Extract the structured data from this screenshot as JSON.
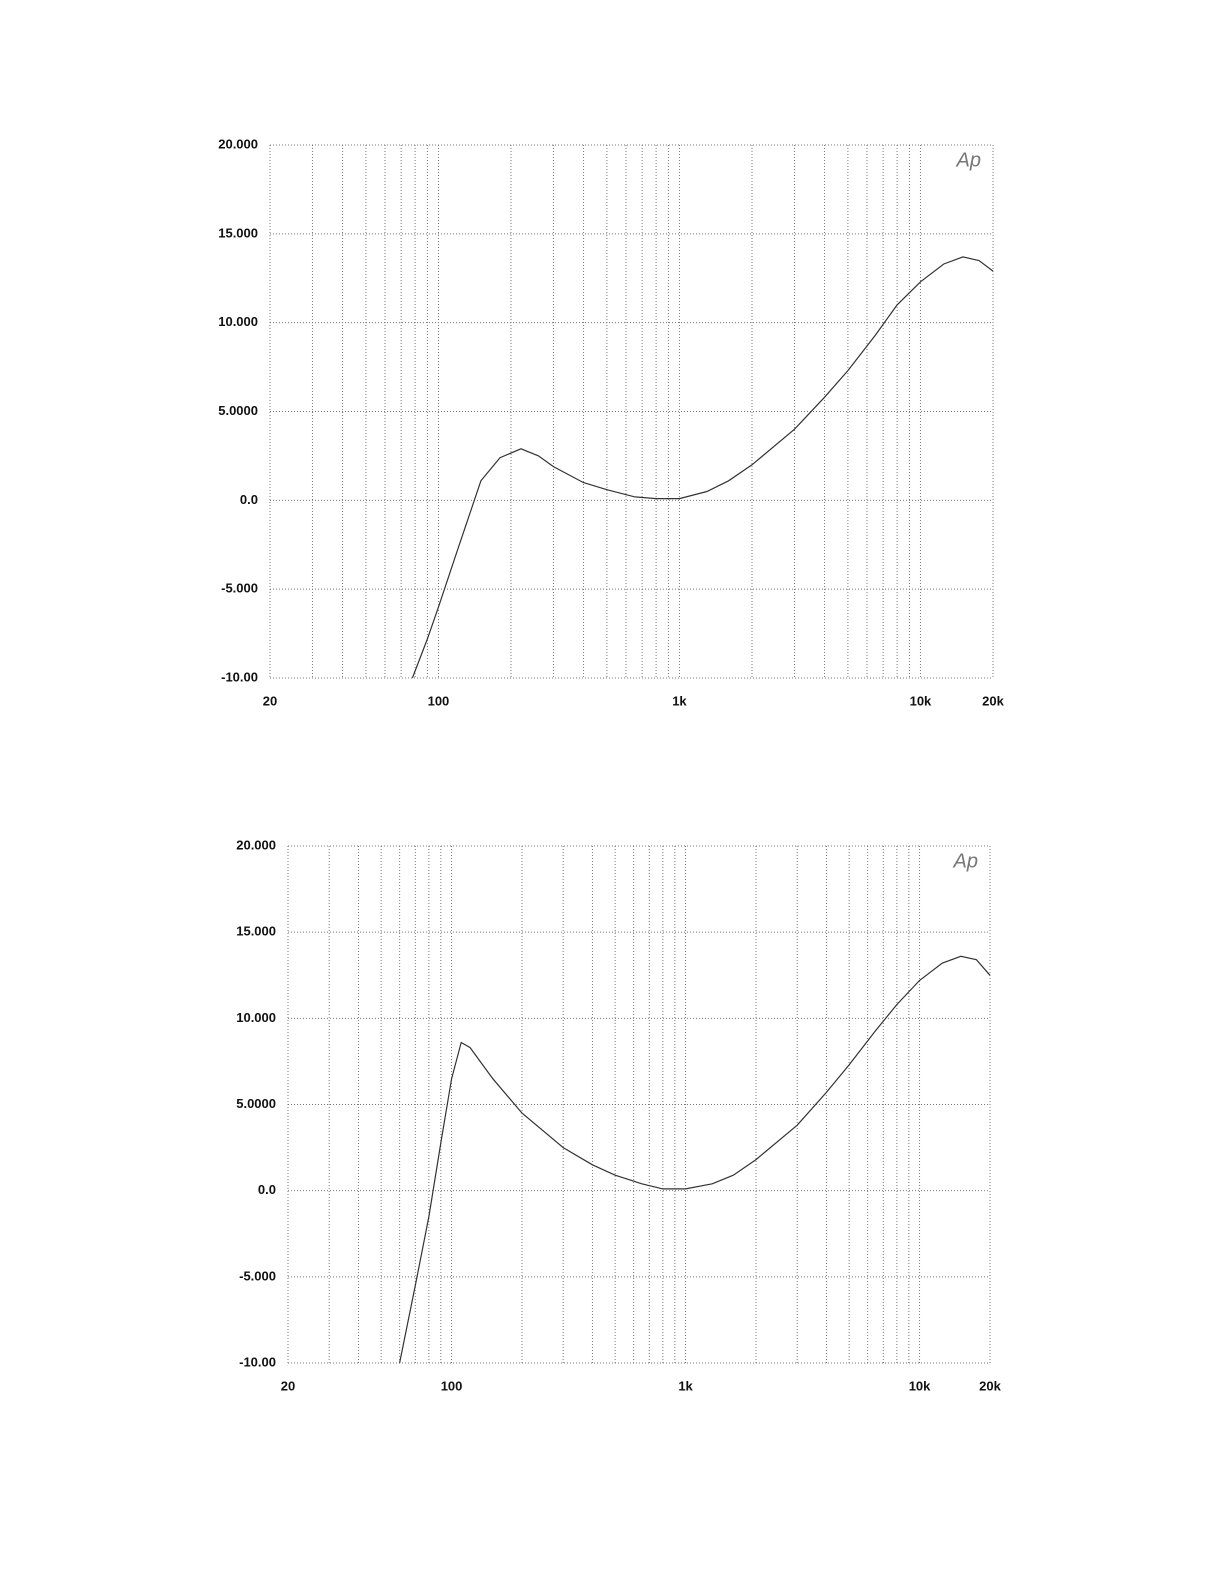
{
  "chart_data": [
    {
      "type": "line",
      "annotation": "Ap",
      "log_x": true,
      "grid": true,
      "color": "#333333",
      "xlim": [
        20,
        20000
      ],
      "ylim": [
        -10,
        20
      ],
      "xticks": [
        20,
        100,
        {
          "value": 1000,
          "label": "1k"
        },
        {
          "value": 10000,
          "label": "10k"
        },
        {
          "value": 20000,
          "label": "20k"
        }
      ],
      "x_gridlines": [
        20,
        30,
        40,
        50,
        60,
        70,
        80,
        90,
        100,
        200,
        300,
        400,
        500,
        600,
        700,
        800,
        900,
        1000,
        2000,
        3000,
        4000,
        5000,
        6000,
        7000,
        8000,
        9000,
        10000,
        20000
      ],
      "yticks": [
        {
          "value": 20,
          "label": "20.000"
        },
        {
          "value": 15,
          "label": "15.000"
        },
        {
          "value": 10,
          "label": "10.000"
        },
        {
          "value": 5,
          "label": "5.0000"
        },
        {
          "value": 0,
          "label": "0.0"
        },
        {
          "value": -5,
          "label": "-5.000"
        },
        {
          "value": -10,
          "label": "-10.00"
        }
      ],
      "x": [
        78,
        90,
        100,
        120,
        150,
        180,
        220,
        260,
        300,
        400,
        500,
        650,
        800,
        1000,
        1300,
        1600,
        2000,
        3000,
        4000,
        5000,
        6500,
        8000,
        10000,
        12500,
        15000,
        17500,
        20000
      ],
      "values": [
        -10,
        -7.8,
        -6,
        -2.8,
        1.1,
        2.4,
        2.9,
        2.5,
        1.9,
        1.0,
        0.6,
        0.2,
        0.1,
        0.1,
        0.5,
        1.1,
        2.0,
        4.0,
        5.8,
        7.3,
        9.3,
        11.0,
        12.3,
        13.3,
        13.7,
        13.5,
        12.9
      ]
    },
    {
      "type": "line",
      "annotation": "Ap",
      "log_x": true,
      "grid": true,
      "color": "#333333",
      "xlim": [
        20,
        20000
      ],
      "ylim": [
        -10,
        20
      ],
      "xticks": [
        20,
        100,
        {
          "value": 1000,
          "label": "1k"
        },
        {
          "value": 10000,
          "label": "10k"
        },
        {
          "value": 20000,
          "label": "20k"
        }
      ],
      "x_gridlines": [
        20,
        30,
        40,
        50,
        60,
        70,
        80,
        90,
        100,
        200,
        300,
        400,
        500,
        600,
        700,
        800,
        900,
        1000,
        2000,
        3000,
        4000,
        5000,
        6000,
        7000,
        8000,
        9000,
        10000,
        20000
      ],
      "yticks": [
        {
          "value": 20,
          "label": "20.000"
        },
        {
          "value": 15,
          "label": "15.000"
        },
        {
          "value": 10,
          "label": "10.000"
        },
        {
          "value": 5,
          "label": "5.0000"
        },
        {
          "value": 0,
          "label": "0.0"
        },
        {
          "value": -5,
          "label": "-5.000"
        },
        {
          "value": -10,
          "label": "-10.00"
        }
      ],
      "x": [
        60,
        70,
        80,
        90,
        100,
        110,
        120,
        150,
        200,
        300,
        400,
        500,
        650,
        800,
        1000,
        1300,
        1600,
        2000,
        3000,
        4000,
        5000,
        6500,
        8000,
        10000,
        12500,
        15000,
        17500,
        20000
      ],
      "values": [
        -10,
        -5.5,
        -1.5,
        2.8,
        6.5,
        8.6,
        8.3,
        6.5,
        4.5,
        2.5,
        1.5,
        0.9,
        0.4,
        0.1,
        0.1,
        0.4,
        0.9,
        1.8,
        3.8,
        5.7,
        7.3,
        9.3,
        10.8,
        12.2,
        13.2,
        13.6,
        13.4,
        12.5
      ]
    }
  ]
}
